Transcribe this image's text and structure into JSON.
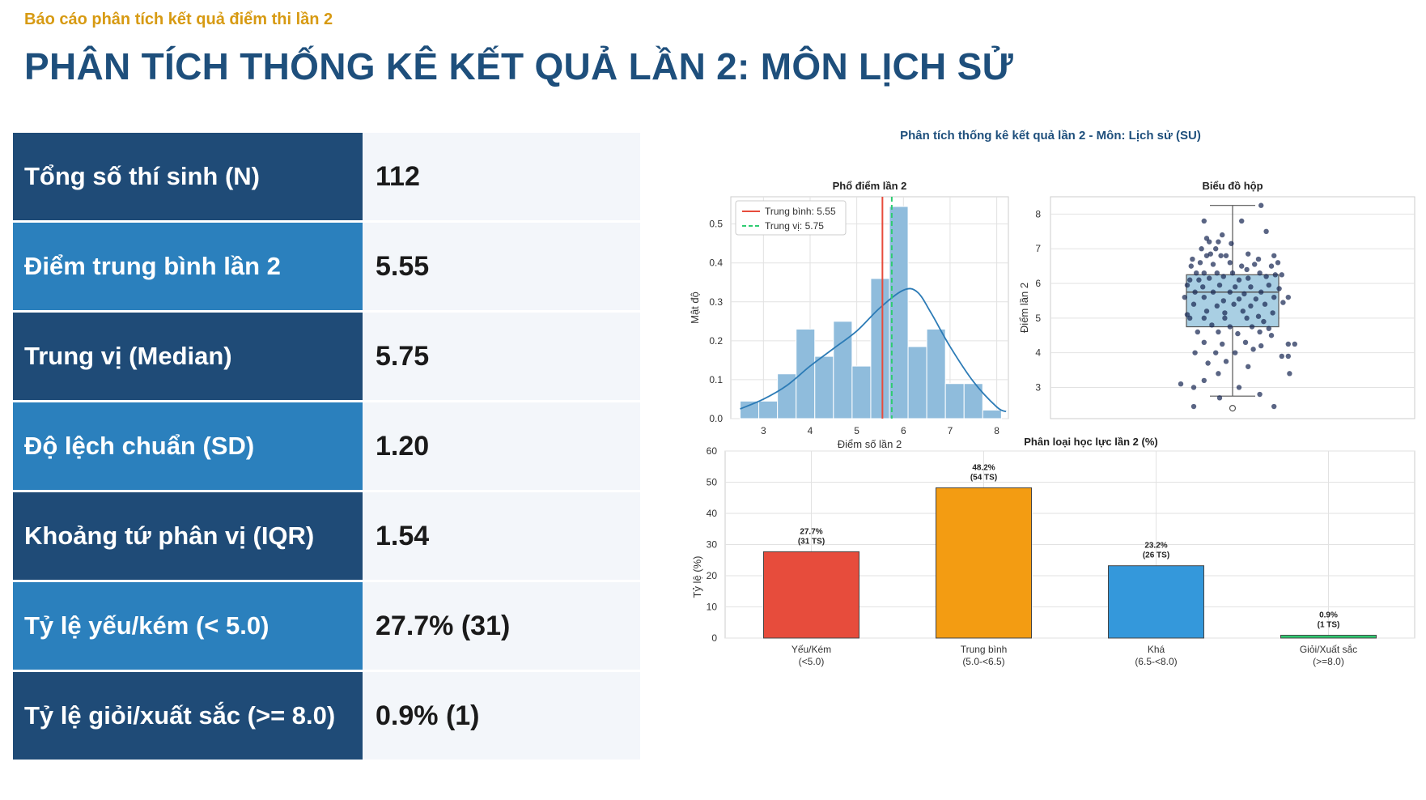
{
  "header": {
    "kicker": "Báo cáo phân tích kết quả điểm thi lần 2",
    "title": "PHÂN TÍCH THỐNG KÊ KẾT QUẢ LẦN 2: MÔN LỊCH SỬ"
  },
  "stats": [
    {
      "label": "Tổng số thí sinh (N)",
      "value": "112"
    },
    {
      "label": "Điểm trung bình lần 2",
      "value": "5.55"
    },
    {
      "label": "Trung vị (Median)",
      "value": "5.75"
    },
    {
      "label": "Độ lệch chuẩn (SD)",
      "value": "1.20"
    },
    {
      "label": "Khoảng tứ phân vị (IQR)",
      "value": "1.54"
    },
    {
      "label": "Tỷ lệ yếu/kém (< 5.0)",
      "value": "27.7% (31)"
    },
    {
      "label": "Tỷ lệ giỏi/xuất sắc (>= 8.0)",
      "value": "0.9% (1)"
    }
  ],
  "colors": {
    "dark_row": "#1f4b77",
    "light_row": "#2b80bd",
    "title": "#1e4f7c",
    "kicker": "#d79a12",
    "hist_bar": "#8fbcdc",
    "kde": "#2c7bb6",
    "mean_line": "#e74c3c",
    "median_line": "#2ecc71",
    "box_fill": "#a9cfe3",
    "dot": "#1b2a55"
  },
  "figure": {
    "suptitle": "Phân tích thống kê kết quả lần 2 - Môn: Lịch sử (SU)"
  },
  "chart_data": [
    {
      "type": "bar",
      "title": "Phổ điểm lần 2",
      "xlabel": "Điểm số lần 2",
      "ylabel": "Mật độ",
      "xlim": [
        2.3,
        8.25
      ],
      "ylim": [
        0,
        0.57
      ],
      "xticks": [
        "3",
        "4",
        "5",
        "6",
        "7",
        "8"
      ],
      "yticks": [
        "0.0",
        "0.1",
        "0.2",
        "0.3",
        "0.4",
        "0.5"
      ],
      "bin_edges": [
        2.5,
        2.9,
        3.3,
        3.7,
        4.1,
        4.5,
        4.9,
        5.3,
        5.7,
        6.1,
        6.5,
        6.9,
        7.3,
        7.7,
        8.1
      ],
      "densities": [
        0.045,
        0.045,
        0.115,
        0.23,
        0.16,
        0.25,
        0.135,
        0.36,
        0.545,
        0.185,
        0.23,
        0.09,
        0.09,
        0.022
      ],
      "kde": [
        [
          2.5,
          0.025
        ],
        [
          3.0,
          0.05
        ],
        [
          3.5,
          0.085
        ],
        [
          4.0,
          0.135
        ],
        [
          4.5,
          0.18
        ],
        [
          5.0,
          0.225
        ],
        [
          5.5,
          0.285
        ],
        [
          6.0,
          0.33
        ],
        [
          6.3,
          0.325
        ],
        [
          6.6,
          0.27
        ],
        [
          7.0,
          0.185
        ],
        [
          7.5,
          0.095
        ],
        [
          8.0,
          0.03
        ],
        [
          8.2,
          0.018
        ]
      ],
      "lines": [
        {
          "name": "Trung bình: 5.55",
          "x": 5.55
        },
        {
          "name": "Trung vị: 5.75",
          "x": 5.75
        }
      ],
      "legend": "top-left",
      "grid": true
    },
    {
      "type": "box",
      "title": "Biểu đồ hộp",
      "ylabel": "Điểm lần 2",
      "ylim": [
        2.1,
        8.5
      ],
      "yticks": [
        "3",
        "4",
        "5",
        "6",
        "7",
        "8"
      ],
      "q1": 4.75,
      "median": 5.75,
      "q3": 6.25,
      "whisker_low": 2.75,
      "whisker_high": 8.25,
      "outliers": [
        2.4
      ],
      "points": [
        [
          0.22,
          8.25
        ],
        [
          -0.22,
          7.8
        ],
        [
          0.07,
          7.8
        ],
        [
          0.26,
          7.5
        ],
        [
          -0.08,
          7.4
        ],
        [
          -0.2,
          7.3
        ],
        [
          -0.18,
          7.2
        ],
        [
          -0.11,
          7.2
        ],
        [
          -0.01,
          7.15
        ],
        [
          -0.24,
          7.0
        ],
        [
          -0.13,
          7.0
        ],
        [
          -0.09,
          6.8
        ],
        [
          -0.2,
          6.8
        ],
        [
          -0.17,
          6.85
        ],
        [
          -0.05,
          6.8
        ],
        [
          0.12,
          6.85
        ],
        [
          0.2,
          6.7
        ],
        [
          0.32,
          6.8
        ],
        [
          0.35,
          6.6
        ],
        [
          -0.25,
          6.6
        ],
        [
          -0.31,
          6.7
        ],
        [
          -0.32,
          6.5
        ],
        [
          -0.15,
          6.55
        ],
        [
          -0.02,
          6.6
        ],
        [
          0.07,
          6.5
        ],
        [
          0.17,
          6.55
        ],
        [
          0.3,
          6.5
        ],
        [
          -0.22,
          6.3
        ],
        [
          -0.28,
          6.3
        ],
        [
          -0.12,
          6.3
        ],
        [
          0.0,
          6.3
        ],
        [
          0.11,
          6.4
        ],
        [
          0.21,
          6.3
        ],
        [
          0.33,
          6.25
        ],
        [
          0.38,
          6.25
        ],
        [
          -0.33,
          6.1
        ],
        [
          -0.26,
          6.1
        ],
        [
          -0.18,
          6.15
        ],
        [
          -0.07,
          6.2
        ],
        [
          0.05,
          6.1
        ],
        [
          0.12,
          6.15
        ],
        [
          0.26,
          6.2
        ],
        [
          -0.35,
          5.95
        ],
        [
          -0.23,
          5.9
        ],
        [
          -0.1,
          5.95
        ],
        [
          0.02,
          5.9
        ],
        [
          0.14,
          5.9
        ],
        [
          0.28,
          5.95
        ],
        [
          0.36,
          5.85
        ],
        [
          -0.29,
          5.75
        ],
        [
          -0.15,
          5.75
        ],
        [
          -0.02,
          5.75
        ],
        [
          0.09,
          5.7
        ],
        [
          0.22,
          5.75
        ],
        [
          -0.37,
          5.6
        ],
        [
          -0.22,
          5.6
        ],
        [
          -0.07,
          5.5
        ],
        [
          0.05,
          5.55
        ],
        [
          0.18,
          5.55
        ],
        [
          0.32,
          5.6
        ],
        [
          0.43,
          5.6
        ],
        [
          -0.3,
          5.4
        ],
        [
          -0.12,
          5.35
        ],
        [
          0.01,
          5.4
        ],
        [
          0.14,
          5.35
        ],
        [
          0.25,
          5.4
        ],
        [
          0.39,
          5.45
        ],
        [
          -0.35,
          5.1
        ],
        [
          -0.2,
          5.2
        ],
        [
          -0.06,
          5.15
        ],
        [
          0.08,
          5.2
        ],
        [
          0.2,
          5.05
        ],
        [
          0.31,
          5.15
        ],
        [
          -0.33,
          5.0
        ],
        [
          -0.22,
          5.0
        ],
        [
          -0.06,
          5.0
        ],
        [
          0.11,
          5.0
        ],
        [
          0.24,
          4.9
        ],
        [
          -0.16,
          4.8
        ],
        [
          -0.02,
          4.75
        ],
        [
          0.15,
          4.75
        ],
        [
          0.28,
          4.7
        ],
        [
          -0.27,
          4.6
        ],
        [
          -0.11,
          4.6
        ],
        [
          0.04,
          4.55
        ],
        [
          0.21,
          4.6
        ],
        [
          0.3,
          4.5
        ],
        [
          -0.22,
          4.3
        ],
        [
          -0.08,
          4.25
        ],
        [
          0.1,
          4.3
        ],
        [
          0.22,
          4.2
        ],
        [
          0.43,
          4.25
        ],
        [
          0.48,
          4.25
        ],
        [
          -0.29,
          4.0
        ],
        [
          -0.13,
          4.0
        ],
        [
          0.02,
          4.0
        ],
        [
          0.16,
          4.1
        ],
        [
          0.38,
          3.9
        ],
        [
          0.43,
          3.9
        ],
        [
          -0.19,
          3.7
        ],
        [
          -0.05,
          3.75
        ],
        [
          0.12,
          3.6
        ],
        [
          0.44,
          3.4
        ],
        [
          -0.11,
          3.4
        ],
        [
          -0.22,
          3.2
        ],
        [
          0.05,
          3.0
        ],
        [
          -0.3,
          3.0
        ],
        [
          -0.4,
          3.1
        ],
        [
          0.21,
          2.8
        ],
        [
          -0.3,
          2.45
        ],
        [
          0.32,
          2.45
        ],
        [
          -0.1,
          2.7
        ]
      ],
      "grid": true
    },
    {
      "type": "bar",
      "title": "Phân loại học lực lần 2 (%)",
      "ylabel": "Tỷ lệ (%)",
      "ylim": [
        0,
        60
      ],
      "yticks": [
        "0",
        "10",
        "20",
        "30",
        "40",
        "50",
        "60"
      ],
      "categories": [
        {
          "name": "Yếu/Kém",
          "range": "(<5.0)"
        },
        {
          "name": "Trung bình",
          "range": "(5.0-<6.5)"
        },
        {
          "name": "Khá",
          "range": "(6.5-<8.0)"
        },
        {
          "name": "Giỏi/Xuất sắc",
          "range": "(>=8.0)"
        }
      ],
      "values": [
        27.7,
        48.2,
        23.2,
        0.9
      ],
      "labels": [
        {
          "pct": "27.7%",
          "count": "(31 TS)"
        },
        {
          "pct": "48.2%",
          "count": "(54 TS)"
        },
        {
          "pct": "23.2%",
          "count": "(26 TS)"
        },
        {
          "pct": "0.9%",
          "count": "(1 TS)"
        }
      ],
      "colors": [
        "#e74c3c",
        "#f39c12",
        "#3498db",
        "#2ecc71"
      ],
      "grid": true
    }
  ]
}
